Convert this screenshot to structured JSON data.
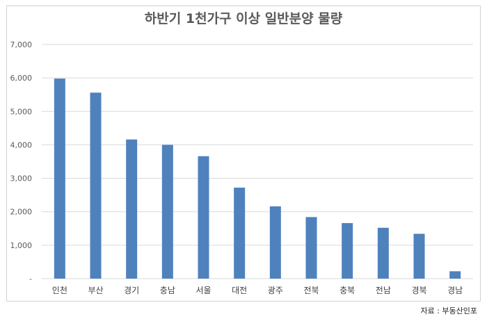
{
  "chart_data": {
    "type": "bar",
    "title": "하반기 1천가구 이상 일반분양 물량",
    "categories": [
      "인천",
      "부산",
      "경기",
      "충남",
      "서울",
      "대전",
      "광주",
      "전북",
      "충북",
      "전남",
      "경북",
      "경남"
    ],
    "values": [
      5980,
      5560,
      4160,
      4000,
      3660,
      2720,
      2160,
      1840,
      1660,
      1520,
      1340,
      220
    ],
    "y_tick_labels": [
      "-",
      "1,000",
      "2,000",
      "3,000",
      "4,000",
      "5,000",
      "6,000",
      "7,000"
    ],
    "ylim": [
      0,
      7000
    ],
    "grid": true,
    "bar_color": "#4f81bd"
  },
  "source_note": "자료 : 부동산인포"
}
